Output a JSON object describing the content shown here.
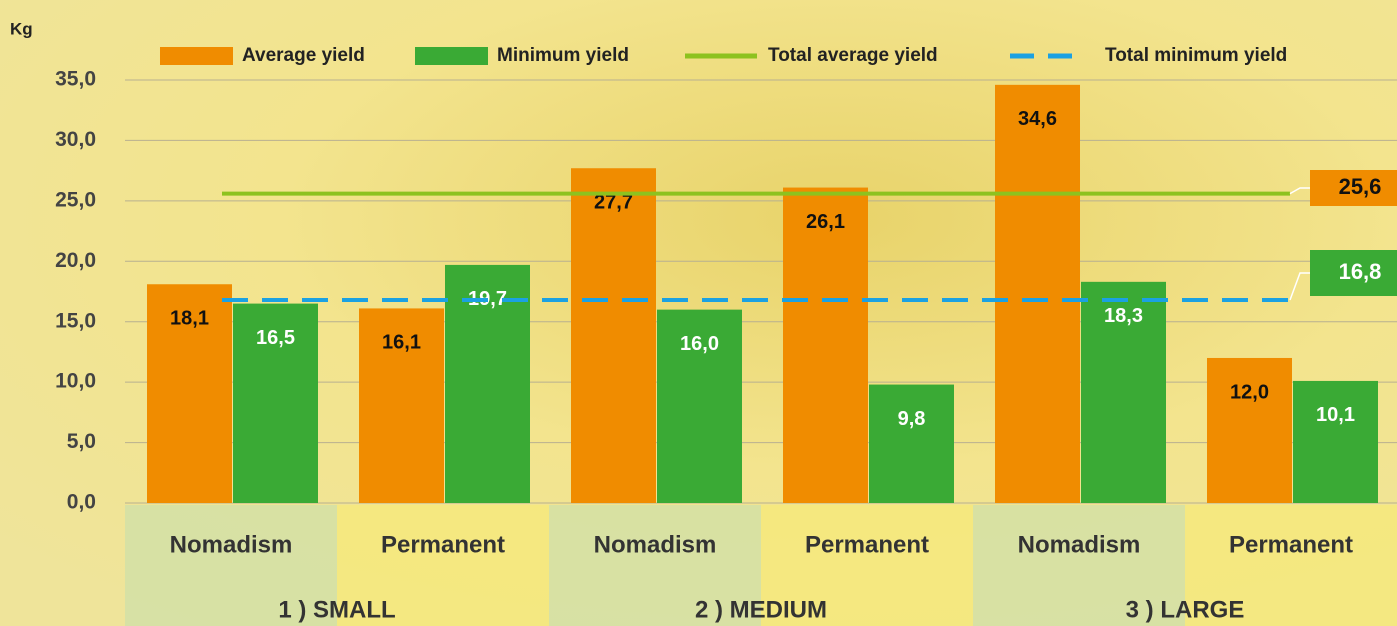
{
  "chart_data": {
    "type": "bar",
    "y_label": "Kg",
    "categories": [
      "Nomadism",
      "Permanent",
      "Nomadism",
      "Permanent",
      "Nomadism",
      "Permanent"
    ],
    "groups": [
      "1 ) SMALL",
      "2 ) MEDIUM",
      "3 ) LARGE"
    ],
    "series": [
      {
        "name": "Average yield",
        "color": "#f08c00",
        "values": [
          18.1,
          16.1,
          27.7,
          26.1,
          34.6,
          12.0
        ],
        "value_labels": [
          "18,1",
          "16,1",
          "27,7",
          "26,1",
          "34,6",
          "12,0"
        ]
      },
      {
        "name": "Minimum yield",
        "color": "#3aaa35",
        "values": [
          16.5,
          19.7,
          16.0,
          9.8,
          18.3,
          10.1
        ],
        "value_labels": [
          "16,5",
          "19,7",
          "16,0",
          "9,8",
          "18,3",
          "10,1"
        ]
      }
    ],
    "reference_lines": [
      {
        "name": "Total average yield",
        "color": "#8dc21f",
        "style": "solid",
        "value": 25.6,
        "value_label": "25,6",
        "label_color": "#f08c00"
      },
      {
        "name": "Total minimum yield",
        "color": "#1ba1e2",
        "style": "dashed",
        "value": 16.8,
        "value_label": "16,8",
        "label_color": "#3aaa35"
      }
    ],
    "ylim": [
      0,
      35
    ],
    "yticks": [
      {
        "value": 0,
        "label": "0,0"
      },
      {
        "value": 5,
        "label": "5,0"
      },
      {
        "value": 10,
        "label": "10,0"
      },
      {
        "value": 15,
        "label": "15,0"
      },
      {
        "value": 20,
        "label": "20,0"
      },
      {
        "value": 25,
        "label": "25,0"
      },
      {
        "value": 30,
        "label": "30,0"
      },
      {
        "value": 35,
        "label": "35,0"
      }
    ],
    "grid": true
  }
}
